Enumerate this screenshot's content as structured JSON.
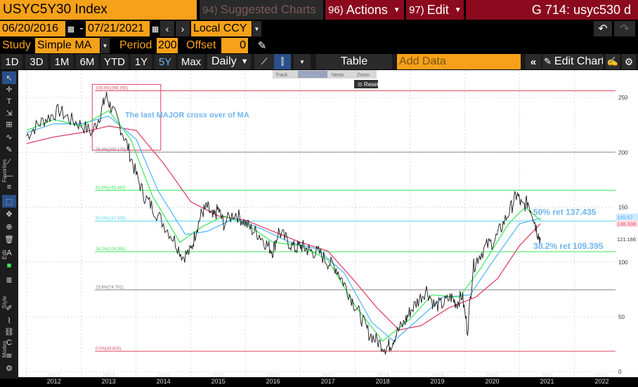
{
  "header": {
    "ticker": "USYC5Y30 Index",
    "suggested_num": "94)",
    "suggested": "Suggested Charts",
    "actions_num": "96)",
    "actions": "Actions",
    "edit_num": "97)",
    "edit": "Edit",
    "title_right": "G 714: usyc530 d"
  },
  "dates": {
    "start": "06/20/2016",
    "dash": "-",
    "end": "07/21/2021",
    "currency": "Local CCY"
  },
  "study": {
    "label": "Study",
    "value": "Simple MA",
    "period_label": "Period",
    "period": "200",
    "offset_label": "Offset",
    "offset": "0"
  },
  "ranges": [
    "1D",
    "3D",
    "1M",
    "6M",
    "YTD",
    "1Y",
    "5Y",
    "Max"
  ],
  "active_range": "5Y",
  "toolbar": {
    "freq": "Daily",
    "table": "Table",
    "add_data_placeholder": "Add Data",
    "edit_chart": "Edit Chart"
  },
  "mini_toolbar": [
    "Track",
    "Annotate",
    "News",
    "Zoom"
  ],
  "mini_reset": "Reset",
  "left_tabs": [
    "Favorites",
    "Edit",
    "Style",
    "Modes"
  ],
  "colors": {
    "orange": "#f7a11a",
    "price": "#e8e8e8",
    "ma_green": "#39e65a",
    "ma_blue": "#4fb3ff",
    "ma_red": "#e0446a",
    "fib_red": "#d9445a",
    "fib_green": "#39e65a",
    "fib_cyan": "#54d4e8",
    "fib_gray": "#888888",
    "annot_blue": "#6fb6f0"
  },
  "chart_data": {
    "type": "line",
    "x_ticks": [
      "2012",
      "2013",
      "2014",
      "2015",
      "2016",
      "2017",
      "2018",
      "2019",
      "2020",
      "2021",
      "2022"
    ],
    "y_ticks": [
      "250",
      "200",
      "150",
      "100",
      "50",
      "0"
    ],
    "ylim": [
      -5,
      275
    ],
    "fib_levels": [
      {
        "label": "100.0%(256.250)",
        "value": 256.25,
        "color": "fib_red"
      },
      {
        "label": "76.4%(200.170)",
        "value": 200.17,
        "color": "fib_gray"
      },
      {
        "label": "61.8%(165.482)",
        "value": 165.48,
        "color": "fib_green"
      },
      {
        "label": "50.0%(137.435)",
        "value": 137.435,
        "color": "fib_cyan"
      },
      {
        "label": "38.2%(109.395)",
        "value": 109.395,
        "color": "fib_green"
      },
      {
        "label": "23.6%(74.701)",
        "value": 74.701,
        "color": "fib_gray"
      },
      {
        "label": "0.0%(18.620)",
        "value": 18.62,
        "color": "fib_red"
      }
    ],
    "annotations": {
      "cross": "The last MAJOR cross over of MA",
      "ret50": "50% ret 137.435",
      "ret382": "38.2% ret 109.395"
    },
    "last_values": [
      "140.57",
      "136.338",
      "121.166"
    ],
    "price": [
      [
        2012.0,
        215
      ],
      [
        2012.2,
        225
      ],
      [
        2012.4,
        232
      ],
      [
        2012.6,
        238
      ],
      [
        2012.8,
        230
      ],
      [
        2013.0,
        225
      ],
      [
        2013.2,
        218
      ],
      [
        2013.35,
        235
      ],
      [
        2013.45,
        252
      ],
      [
        2013.55,
        240
      ],
      [
        2013.7,
        225
      ],
      [
        2013.85,
        205
      ],
      [
        2014.0,
        180
      ],
      [
        2014.15,
        160
      ],
      [
        2014.3,
        150
      ],
      [
        2014.5,
        135
      ],
      [
        2014.7,
        120
      ],
      [
        2014.85,
        105
      ],
      [
        2015.0,
        110
      ],
      [
        2015.1,
        130
      ],
      [
        2015.2,
        145
      ],
      [
        2015.3,
        150
      ],
      [
        2015.4,
        140
      ],
      [
        2015.5,
        148
      ],
      [
        2015.6,
        135
      ],
      [
        2015.8,
        145
      ],
      [
        2015.95,
        138
      ],
      [
        2016.1,
        130
      ],
      [
        2016.25,
        125
      ],
      [
        2016.4,
        115
      ],
      [
        2016.5,
        110
      ],
      [
        2016.6,
        128
      ],
      [
        2016.75,
        120
      ],
      [
        2016.9,
        112
      ],
      [
        2017.0,
        115
      ],
      [
        2017.1,
        112
      ],
      [
        2017.2,
        110
      ],
      [
        2017.35,
        108
      ],
      [
        2017.5,
        100
      ],
      [
        2017.65,
        95
      ],
      [
        2017.8,
        80
      ],
      [
        2017.95,
        65
      ],
      [
        2018.1,
        50
      ],
      [
        2018.25,
        35
      ],
      [
        2018.4,
        28
      ],
      [
        2018.55,
        22
      ],
      [
        2018.65,
        25
      ],
      [
        2018.75,
        35
      ],
      [
        2018.9,
        45
      ],
      [
        2019.0,
        55
      ],
      [
        2019.15,
        65
      ],
      [
        2019.3,
        75
      ],
      [
        2019.45,
        60
      ],
      [
        2019.6,
        62
      ],
      [
        2019.75,
        68
      ],
      [
        2019.85,
        62
      ],
      [
        2019.95,
        70
      ],
      [
        2020.05,
        38
      ],
      [
        2020.15,
        95
      ],
      [
        2020.25,
        105
      ],
      [
        2020.4,
        115
      ],
      [
        2020.55,
        120
      ],
      [
        2020.7,
        135
      ],
      [
        2020.85,
        150
      ],
      [
        2020.95,
        162
      ],
      [
        2021.05,
        150
      ],
      [
        2021.15,
        155
      ],
      [
        2021.25,
        142
      ],
      [
        2021.32,
        128
      ],
      [
        2021.38,
        120
      ]
    ],
    "ma_green": [
      [
        2012.0,
        220
      ],
      [
        2012.5,
        230
      ],
      [
        2013.0,
        224
      ],
      [
        2013.5,
        238
      ],
      [
        2013.9,
        212
      ],
      [
        2014.3,
        160
      ],
      [
        2014.8,
        118
      ],
      [
        2015.2,
        132
      ],
      [
        2015.6,
        142
      ],
      [
        2016.0,
        135
      ],
      [
        2016.5,
        118
      ],
      [
        2017.0,
        115
      ],
      [
        2017.5,
        102
      ],
      [
        2018.0,
        60
      ],
      [
        2018.5,
        28
      ],
      [
        2019.0,
        48
      ],
      [
        2019.4,
        70
      ],
      [
        2019.9,
        68
      ],
      [
        2020.3,
        95
      ],
      [
        2020.8,
        135
      ],
      [
        2021.1,
        150
      ],
      [
        2021.38,
        138
      ]
    ],
    "ma_blue": [
      [
        2012.0,
        218
      ],
      [
        2012.5,
        226
      ],
      [
        2013.0,
        226
      ],
      [
        2013.5,
        233
      ],
      [
        2014.0,
        212
      ],
      [
        2014.4,
        165
      ],
      [
        2014.9,
        125
      ],
      [
        2015.3,
        128
      ],
      [
        2015.8,
        140
      ],
      [
        2016.3,
        130
      ],
      [
        2016.8,
        118
      ],
      [
        2017.3,
        112
      ],
      [
        2017.8,
        90
      ],
      [
        2018.3,
        45
      ],
      [
        2018.7,
        28
      ],
      [
        2019.2,
        50
      ],
      [
        2019.6,
        68
      ],
      [
        2020.1,
        70
      ],
      [
        2020.5,
        100
      ],
      [
        2021.0,
        135
      ],
      [
        2021.38,
        140
      ]
    ],
    "ma_red": [
      [
        2012.0,
        208
      ],
      [
        2012.5,
        214
      ],
      [
        2013.0,
        218
      ],
      [
        2013.5,
        224
      ],
      [
        2014.0,
        220
      ],
      [
        2014.5,
        190
      ],
      [
        2015.0,
        155
      ],
      [
        2015.5,
        142
      ],
      [
        2016.0,
        138
      ],
      [
        2016.5,
        128
      ],
      [
        2017.0,
        118
      ],
      [
        2017.5,
        110
      ],
      [
        2018.0,
        82
      ],
      [
        2018.4,
        58
      ],
      [
        2018.8,
        38
      ],
      [
        2019.2,
        42
      ],
      [
        2019.7,
        58
      ],
      [
        2020.2,
        68
      ],
      [
        2020.6,
        85
      ],
      [
        2021.0,
        115
      ],
      [
        2021.38,
        135
      ]
    ]
  }
}
